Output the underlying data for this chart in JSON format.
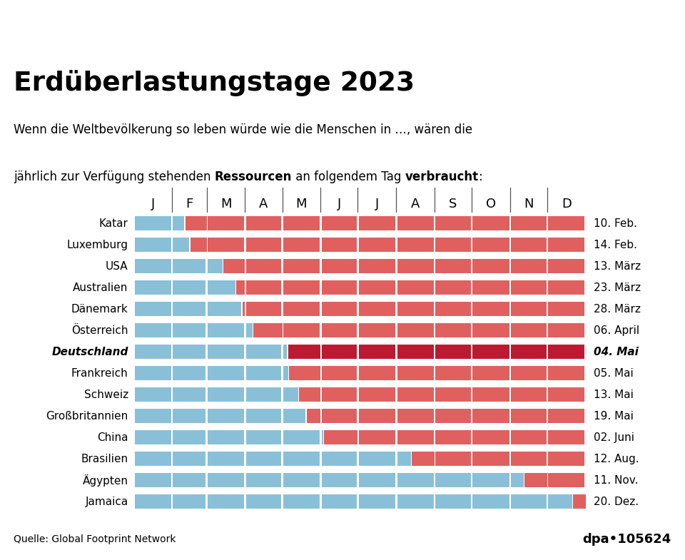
{
  "title": "Erdüberlastungstage 2023",
  "sub1": "Wenn die Weltbevölkerung so leben würde wie die Menschen in …, wären die",
  "sub2_parts": [
    [
      "jährlich zur Verfügung stehenden ",
      false
    ],
    [
      "Ressourcen",
      true
    ],
    [
      " an folgendem Tag ",
      false
    ],
    [
      "verbraucht",
      true
    ],
    [
      ":",
      false
    ]
  ],
  "source": "Quelle: Global Footprint Network",
  "logo": "dpa•105624",
  "months_labels": [
    "J",
    "F",
    "M",
    "A",
    "M",
    "J",
    "J",
    "A",
    "S",
    "O",
    "N",
    "D"
  ],
  "month_days": [
    31,
    28,
    31,
    30,
    31,
    30,
    31,
    31,
    30,
    31,
    30,
    31
  ],
  "total_days": 365,
  "countries": [
    {
      "name": "Katar",
      "date_label": "10. Feb.",
      "day": 41,
      "bold": false
    },
    {
      "name": "Luxemburg",
      "date_label": "14. Feb.",
      "day": 45,
      "bold": false
    },
    {
      "name": "USA",
      "date_label": "13. März",
      "day": 72,
      "bold": false
    },
    {
      "name": "Australien",
      "date_label": "23. März",
      "day": 82,
      "bold": false
    },
    {
      "name": "Dänemark",
      "date_label": "28. März",
      "day": 87,
      "bold": false
    },
    {
      "name": "Österreich",
      "date_label": "06. April",
      "day": 96,
      "bold": false
    },
    {
      "name": "Deutschland",
      "date_label": "04. Mai",
      "day": 124,
      "bold": true
    },
    {
      "name": "Frankreich",
      "date_label": "05. Mai",
      "day": 125,
      "bold": false
    },
    {
      "name": "Schweiz",
      "date_label": "13. Mai",
      "day": 133,
      "bold": false
    },
    {
      "name": "Großbritannien",
      "date_label": "19. Mai",
      "day": 139,
      "bold": false
    },
    {
      "name": "China",
      "date_label": "02. Juni",
      "day": 153,
      "bold": false
    },
    {
      "name": "Brasilien",
      "date_label": "12. Aug.",
      "day": 224,
      "bold": false
    },
    {
      "name": "Ägypten",
      "date_label": "11. Nov.",
      "day": 315,
      "bold": false
    },
    {
      "name": "Jamaica",
      "date_label": "20. Dez.",
      "day": 354,
      "bold": false
    }
  ],
  "color_blue": "#89C0D8",
  "color_red": "#E06060",
  "color_red_dark": "#C01830",
  "color_bg": "#FFFFFF",
  "color_footer_bg": "#E0E0E0"
}
